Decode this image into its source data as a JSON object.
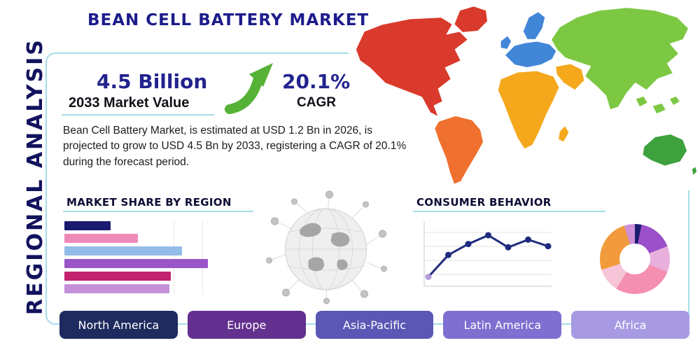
{
  "page": {
    "title": "BEAN CELL BATTERY MARKET",
    "side_label": "REGIONAL ANALYSIS"
  },
  "stats": {
    "market_value": "4.5 Billion",
    "market_value_label": "2033 Market Value",
    "cagr_value": "20.1%",
    "cagr_label": "CAGR"
  },
  "description": "Bean Cell Battery Market, is estimated at USD 1.2 Bn in 2026, is projected to grow to USD 4.5 Bn by 2033, registering a CAGR of 20.1% during the forecast period.",
  "sections": {
    "market_share_title": "MARKET SHARE BY REGION",
    "consumer_behavior_title": "CONSUMER BEHAVIOR"
  },
  "footer_tabs": [
    {
      "label": "North America",
      "color": "#1f2a5e"
    },
    {
      "label": "Europe",
      "color": "#63308f"
    },
    {
      "label": "Asia-Pacific",
      "color": "#5a58b4"
    },
    {
      "label": "Latin America",
      "color": "#7e6fd0"
    },
    {
      "label": "Africa",
      "color": "#a89ae2"
    }
  ],
  "colors": {
    "accent_teal": "#a6dde9",
    "navy": "#1c1c8c",
    "arrow_green": "#55b236"
  },
  "map_regions": {
    "north_america": "#d93a2b",
    "greenland": "#d93a2b",
    "south_america": "#f0712f",
    "europe": "#4286d8",
    "scandinavia": "#4286d8",
    "uk": "#4286d8",
    "africa": "#f5a81c",
    "madagascar": "#f5a81c",
    "middle_east": "#f5a81c",
    "asia": "#7dc843",
    "se_asia": "#7dc843",
    "australia": "#3da23d",
    "new_zealand": "#3da23d"
  },
  "chart_data": [
    {
      "type": "bar",
      "title": "MARKET SHARE BY REGION",
      "orientation": "horizontal",
      "values": [
        32,
        51,
        82,
        100,
        74,
        73
      ],
      "colors": [
        "#1a1a6e",
        "#ef8ab8",
        "#93bce8",
        "#9a55c8",
        "#c2226e",
        "#c490d8"
      ],
      "xlim": [
        0,
        100
      ],
      "grid": true
    },
    {
      "type": "line",
      "title": "CONSUMER BEHAVIOR",
      "x": [
        1,
        2,
        3,
        4,
        5,
        6,
        7
      ],
      "y": [
        0.8,
        2.8,
        3.8,
        4.6,
        3.5,
        4.2,
        3.6
      ],
      "ylim": [
        0,
        5.5
      ],
      "line_color": "#1f2b7e",
      "first_point_color": "#b39ddb",
      "grid": true
    },
    {
      "type": "pie",
      "title": "",
      "donut": true,
      "segments": [
        {
          "color": "#1a1a6e",
          "value": 3
        },
        {
          "color": "#9b4fc8",
          "value": 16
        },
        {
          "color": "#e8b0dc",
          "value": 12
        },
        {
          "color": "#f48fb1",
          "value": 28
        },
        {
          "color": "#f7c5d8",
          "value": 11
        },
        {
          "color": "#f29b3c",
          "value": 25
        },
        {
          "color": "#cf8fd8",
          "value": 5
        }
      ]
    }
  ]
}
